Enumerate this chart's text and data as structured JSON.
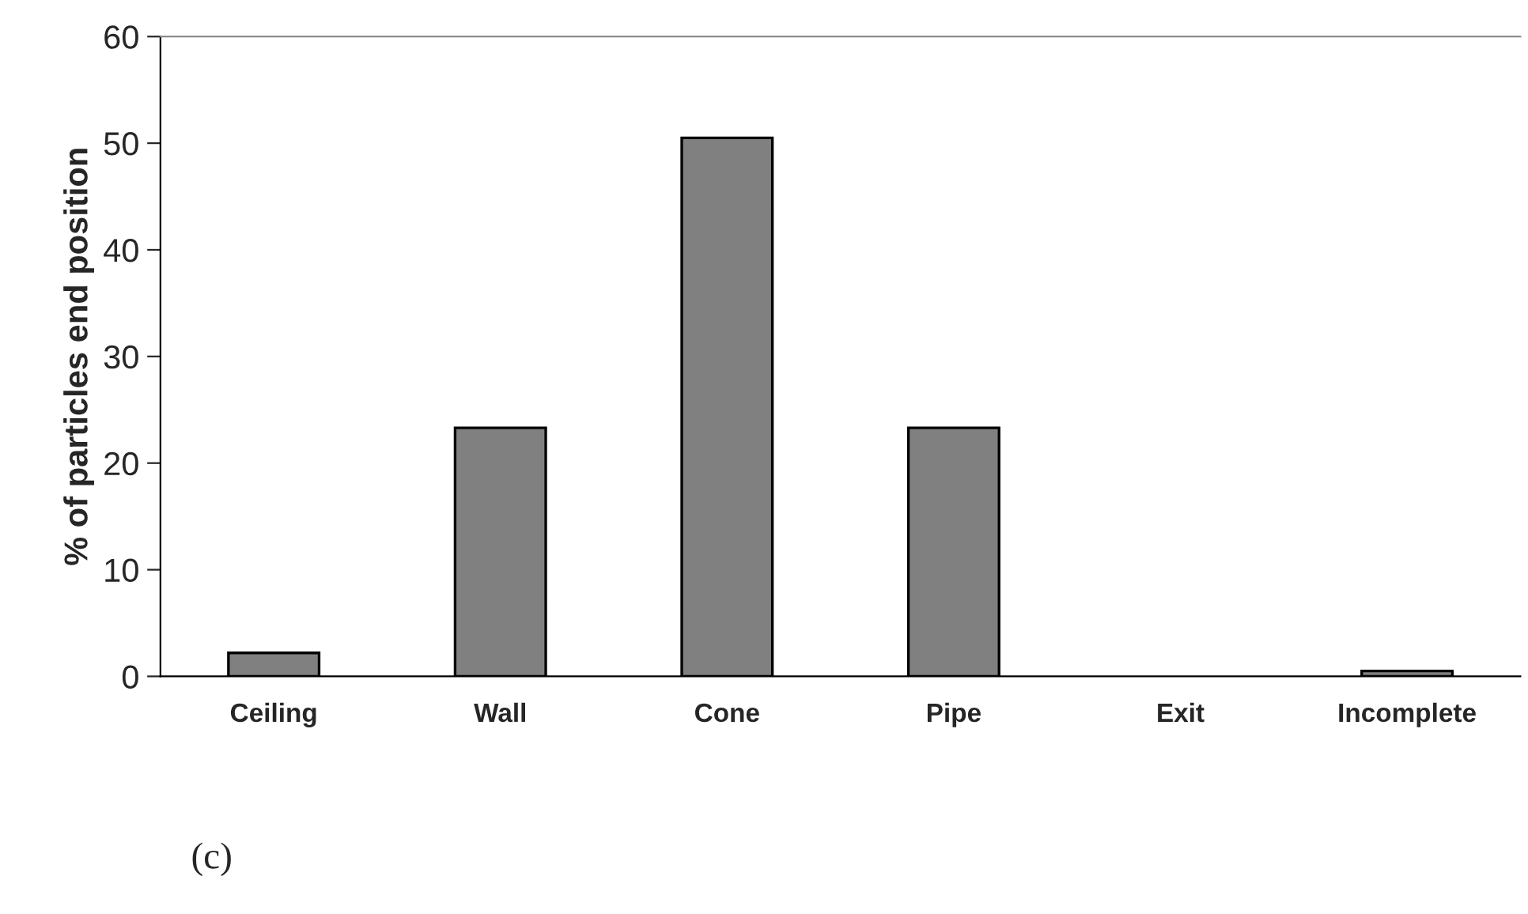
{
  "chart_data": {
    "type": "bar",
    "ylabel": "% of particles end position",
    "categories": [
      "Ceiling",
      "Wall",
      "Cone",
      "Pipe",
      "Exit",
      "Incomplete"
    ],
    "values": [
      2.2,
      23.3,
      50.5,
      23.3,
      0,
      0.5
    ],
    "color": "#808080",
    "ylim": [
      0,
      60
    ],
    "yticks": [
      0,
      10,
      20,
      30,
      40,
      50,
      60
    ],
    "annotations": [
      "(c)"
    ]
  }
}
